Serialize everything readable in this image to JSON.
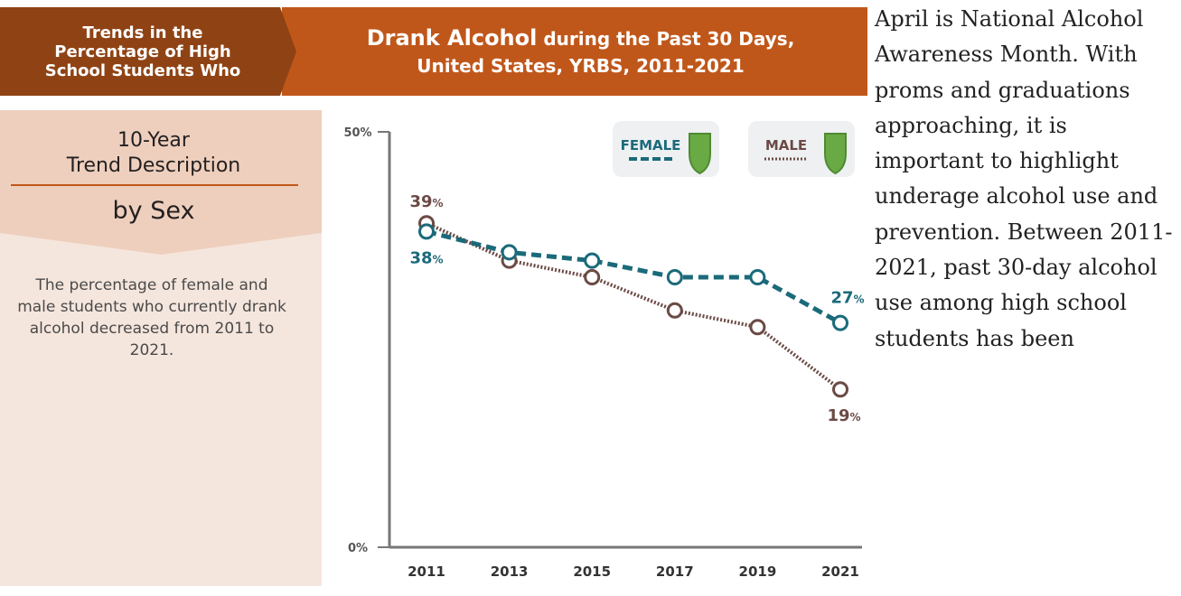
{
  "header": {
    "left_text": "Trends in the\nPercentage of High\nSchool Students Who",
    "title_bold": "Drank Alcohol",
    "title_rest": " during the Past 30 Days,",
    "subtitle": "United States, YRBS, 2011-2021"
  },
  "side_panel": {
    "title": "10-Year\nTrend Description",
    "subtitle": "by Sex",
    "description": "The percentage of female and male students who currently drank alcohol decreased from 2011 to 2021."
  },
  "legend": {
    "female": "FEMALE",
    "male": "MALE"
  },
  "colors": {
    "female": "#1b6a7a",
    "male": "#6b4a45",
    "header_dark": "#8f4314",
    "header_orange": "#c0571a",
    "shield": "#6aaa45"
  },
  "chart_data": {
    "type": "line",
    "x": [
      "2011",
      "2013",
      "2015",
      "2017",
      "2019",
      "2021"
    ],
    "ylim": [
      0,
      50
    ],
    "y_ticks": [
      "0%",
      "50%"
    ],
    "series": [
      {
        "name": "FEMALE",
        "values": [
          38,
          35.5,
          34.5,
          32.5,
          32.5,
          27
        ]
      },
      {
        "name": "MALE",
        "values": [
          39,
          34.5,
          32.5,
          28.5,
          26.5,
          19
        ]
      }
    ],
    "data_labels": {
      "female_start": "38%",
      "male_start": "39%",
      "female_end": "27%",
      "male_end": "19%"
    }
  },
  "article": {
    "text": "April is National Alcohol Awareness Month. With proms and graduations approaching, it is important to highlight underage alcohol use and prevention. Between 2011-2021, past 30-day alcohol use among high school students has been"
  }
}
